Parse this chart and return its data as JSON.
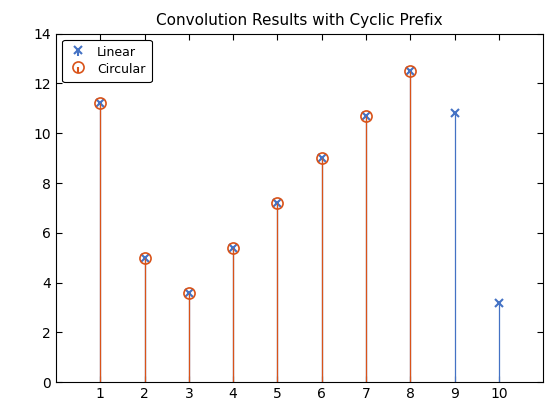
{
  "title": "Convolution Results with Cyclic Prefix",
  "linear_x": [
    1,
    2,
    3,
    4,
    5,
    6,
    7,
    8,
    9,
    10
  ],
  "linear_y": [
    11.2,
    5.0,
    3.6,
    5.4,
    7.2,
    9.0,
    10.7,
    12.5,
    10.8,
    3.2
  ],
  "circular_x": [
    1,
    2,
    3,
    4,
    5,
    6,
    7,
    8
  ],
  "circular_y": [
    11.2,
    5.0,
    3.6,
    5.4,
    7.2,
    9.0,
    10.7,
    12.5
  ],
  "linear_color": "#4472c4",
  "circular_color": "#d95319",
  "xlim": [
    0,
    11
  ],
  "ylim": [
    0,
    14
  ],
  "xticks": [
    1,
    2,
    3,
    4,
    5,
    6,
    7,
    8,
    9,
    10
  ],
  "yticks": [
    0,
    2,
    4,
    6,
    8,
    10,
    12,
    14
  ],
  "legend_labels": [
    "Linear",
    "Circular"
  ],
  "background_color": "#ffffff",
  "title_fontsize": 11,
  "tick_fontsize": 10
}
